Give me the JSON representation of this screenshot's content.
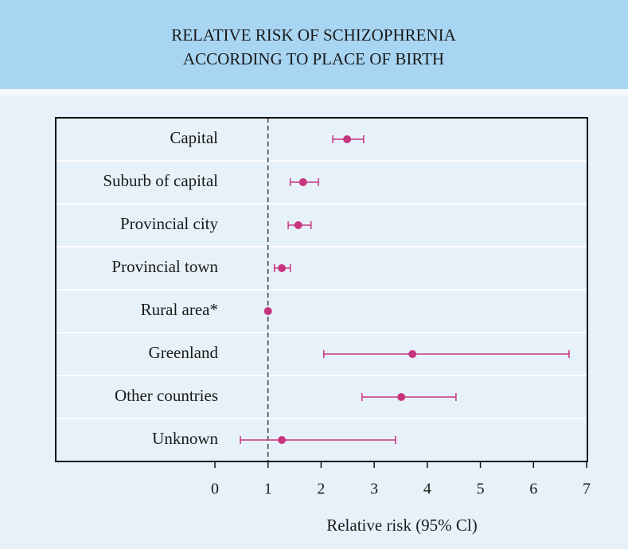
{
  "chart_data": {
    "type": "forest",
    "title": [
      "RELATIVE RISK OF SCHIZOPHRENIA",
      "ACCORDING TO PLACE OF BIRTH"
    ],
    "categories": [
      "Capital",
      "Suburb of capital",
      "Provincial city",
      "Provincial town",
      "Rural area*",
      "Greenland",
      "Other countries",
      "Unknown"
    ],
    "values": [
      2.49,
      1.66,
      1.57,
      1.26,
      1,
      3.72,
      3.51,
      1.26
    ],
    "ci_low": [
      2.22,
      1.42,
      1.38,
      1.12,
      null,
      2.05,
      2.77,
      0.48
    ],
    "ci_high": [
      2.8,
      1.95,
      1.81,
      1.42,
      null,
      6.67,
      4.54,
      3.4
    ],
    "color": "#c8357f",
    "reference_line": 1,
    "xlim": [
      0,
      7
    ],
    "xticks": [
      0,
      1,
      2,
      3,
      4,
      5,
      6,
      7
    ],
    "xlabel": "Relative risk (95% Cl)"
  }
}
